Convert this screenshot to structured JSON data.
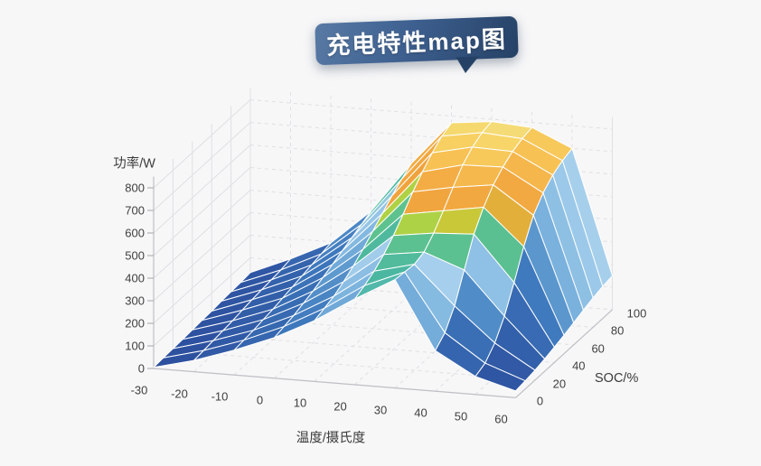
{
  "title": {
    "text": "充电特性map图"
  },
  "badge": {
    "gradient_start": "#587aa4",
    "gradient_mid": "#3e6090",
    "gradient_end": "#254165",
    "text_color": "#ffffff"
  },
  "background_color": "#f7f7f8",
  "chart_data": {
    "type": "surface",
    "title": "充电特性map图",
    "xlabel": "温度/摄氏度",
    "ylabel": "SOC/%",
    "zlabel": "功率/W",
    "x": [
      -30,
      -20,
      -10,
      0,
      10,
      20,
      30,
      40,
      50,
      60
    ],
    "y": [
      0,
      10,
      20,
      30,
      40,
      50,
      60,
      70,
      80,
      90,
      100
    ],
    "z_by_temperature_rows": [
      [
        5,
        8,
        10,
        12,
        15,
        18,
        20,
        25,
        28,
        30,
        35
      ],
      [
        50,
        55,
        60,
        65,
        70,
        78,
        85,
        90,
        95,
        100,
        110
      ],
      [
        110,
        115,
        120,
        128,
        135,
        145,
        155,
        165,
        175,
        185,
        195
      ],
      [
        180,
        190,
        200,
        215,
        230,
        250,
        270,
        290,
        310,
        330,
        350
      ],
      [
        270,
        285,
        300,
        325,
        355,
        390,
        430,
        470,
        510,
        545,
        575
      ],
      [
        380,
        400,
        425,
        460,
        505,
        560,
        620,
        670,
        715,
        750,
        770
      ],
      [
        480,
        475,
        470,
        485,
        530,
        590,
        655,
        715,
        755,
        780,
        790
      ],
      [
        180,
        220,
        300,
        420,
        540,
        620,
        680,
        720,
        750,
        768,
        778
      ],
      [
        80,
        100,
        150,
        230,
        340,
        460,
        560,
        620,
        660,
        685,
        700
      ],
      [
        30,
        36,
        44,
        55,
        68,
        82,
        98,
        115,
        130,
        142,
        150
      ]
    ],
    "x_ticks": [
      -30,
      -20,
      -10,
      0,
      10,
      20,
      30,
      40,
      50,
      60
    ],
    "y_ticks": [
      0,
      20,
      40,
      60,
      80,
      100
    ],
    "z_ticks": [
      0,
      100,
      200,
      300,
      400,
      500,
      600,
      700,
      800
    ],
    "zlim": [
      0,
      800
    ],
    "colormap_stops": [
      [
        0,
        "#2b4b9b"
      ],
      [
        120,
        "#3360aa"
      ],
      [
        230,
        "#3d77bc"
      ],
      [
        300,
        "#5b97cd"
      ],
      [
        355,
        "#7eb5df"
      ],
      [
        420,
        "#a6cfec"
      ],
      [
        435,
        "#49b6a4"
      ],
      [
        500,
        "#5ec28e"
      ],
      [
        540,
        "#a9d14b"
      ],
      [
        565,
        "#bcd538"
      ],
      [
        585,
        "#f0a23c"
      ],
      [
        660,
        "#f3ab42"
      ],
      [
        720,
        "#f7c355"
      ],
      [
        760,
        "#f7d465"
      ],
      [
        800,
        "#f2e386"
      ]
    ],
    "mesh_line_color": "#ffffff",
    "pane_line_color": "#e0e0e4",
    "axis_line_color": "#bfbfc5",
    "tick_text_color": "#3f3f3f"
  }
}
